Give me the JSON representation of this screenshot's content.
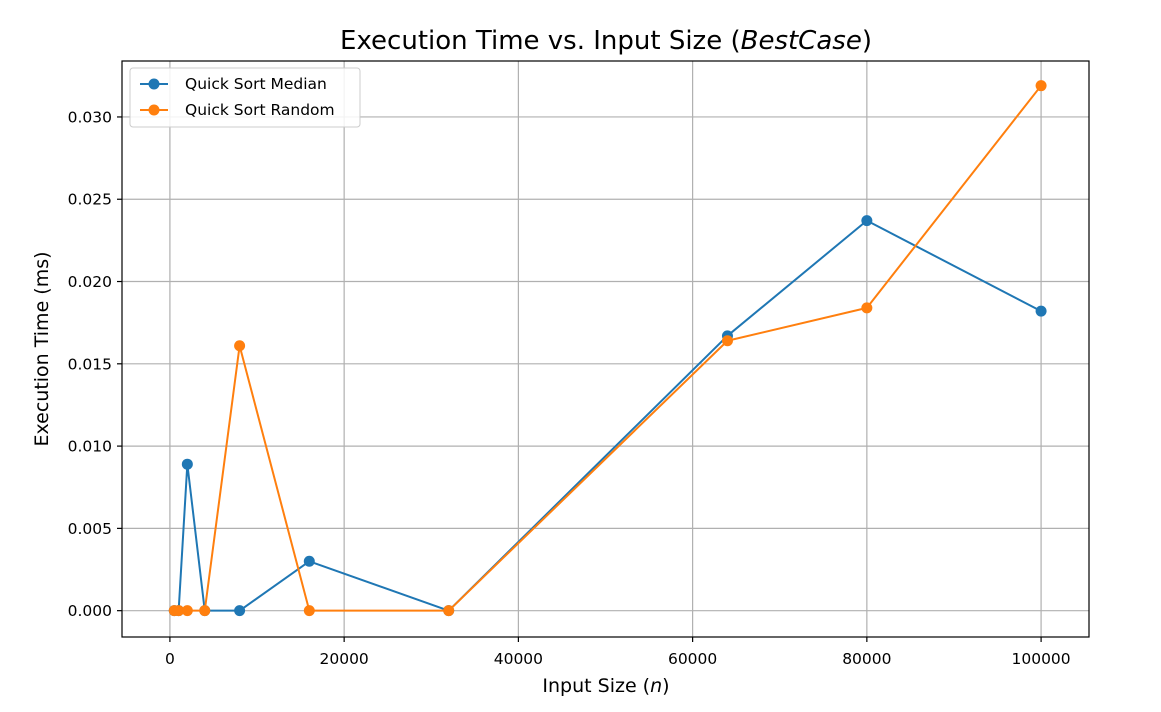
{
  "chart_data": {
    "type": "line",
    "title_main": "Execution Time vs. Input Size (",
    "title_italic": "BestCase",
    "title_end": ")",
    "xlabel_main": "Input Size (",
    "xlabel_italic": "n",
    "xlabel_end": ")",
    "ylabel": "Execution Time (ms)",
    "xlim": [
      -5500,
      105500
    ],
    "ylim": [
      -0.0016,
      0.0334
    ],
    "xticks": [
      0,
      20000,
      40000,
      60000,
      80000,
      100000
    ],
    "xtick_labels": [
      "0",
      "20000",
      "40000",
      "60000",
      "80000",
      "100000"
    ],
    "yticks": [
      0.0,
      0.005,
      0.01,
      0.015,
      0.02,
      0.025,
      0.03
    ],
    "ytick_labels": [
      "0.000",
      "0.005",
      "0.010",
      "0.015",
      "0.020",
      "0.025",
      "0.030"
    ],
    "grid": true,
    "legend_position": "top-left",
    "series": [
      {
        "name": "Quick Sort Median",
        "color": "#1f77b4",
        "x": [
          500,
          1000,
          2000,
          4000,
          8000,
          16000,
          32000,
          64000,
          80000,
          100000
        ],
        "y": [
          0.0,
          0.0,
          0.0089,
          0.0,
          0.0,
          0.003,
          0.0,
          0.0167,
          0.0237,
          0.0182
        ]
      },
      {
        "name": "Quick Sort Random",
        "color": "#ff7f0e",
        "x": [
          500,
          1000,
          2000,
          4000,
          8000,
          16000,
          32000,
          64000,
          80000,
          100000
        ],
        "y": [
          0.0,
          0.0,
          0.0,
          0.0,
          0.0161,
          0.0,
          0.0,
          0.0164,
          0.0184,
          0.0319
        ]
      }
    ]
  }
}
